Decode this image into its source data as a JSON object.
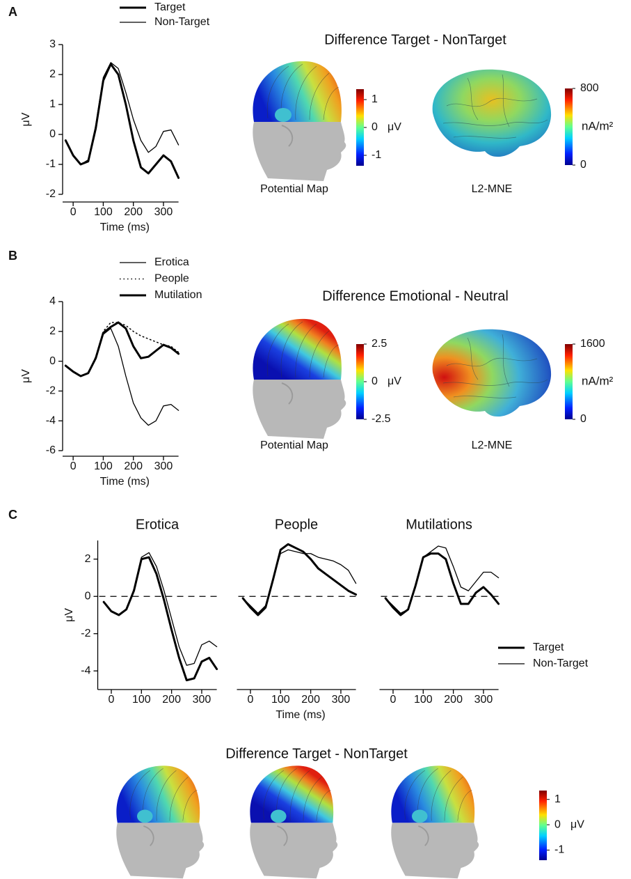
{
  "panel_labels": [
    "A",
    "B",
    "C"
  ],
  "chart_data": [
    {
      "type": "line",
      "ylabel": "μV",
      "xlabel": "Time (ms)",
      "x": [
        -25,
        0,
        25,
        50,
        75,
        100,
        125,
        150,
        175,
        200,
        225,
        250,
        275,
        300,
        325,
        350
      ],
      "xlim": [
        -35,
        350
      ],
      "xticks": [
        0,
        100,
        200,
        300
      ],
      "ylim": [
        -2,
        3
      ],
      "yticks": [
        -2,
        -1,
        0,
        1,
        2,
        3
      ],
      "legend": true,
      "series": [
        {
          "name": "Target",
          "color": "#000000",
          "line_width": 3,
          "values": [
            -0.2,
            -0.7,
            -1.0,
            -0.9,
            0.2,
            1.8,
            2.35,
            2.0,
            1.0,
            -0.2,
            -1.1,
            -1.3,
            -1.0,
            -0.7,
            -0.9,
            -1.45
          ]
        },
        {
          "name": "Non-Target",
          "color": "#000000",
          "line_width": 1.3,
          "values": [
            -0.2,
            -0.7,
            -1.0,
            -0.85,
            0.3,
            1.9,
            2.4,
            2.2,
            1.4,
            0.5,
            -0.2,
            -0.6,
            -0.4,
            0.1,
            0.15,
            -0.35
          ]
        }
      ]
    },
    {
      "type": "line",
      "ylabel": "μV",
      "xlabel": "Time (ms)",
      "x": [
        -25,
        0,
        25,
        50,
        75,
        100,
        125,
        150,
        175,
        200,
        225,
        250,
        275,
        300,
        325,
        350
      ],
      "xlim": [
        -35,
        350
      ],
      "xticks": [
        0,
        100,
        200,
        300
      ],
      "ylim": [
        -6,
        4
      ],
      "yticks": [
        -6,
        -4,
        -2,
        0,
        2,
        4
      ],
      "legend": true,
      "series": [
        {
          "name": "Erotica",
          "color": "#000000",
          "line_width": 1.3,
          "values": [
            -0.3,
            -0.7,
            -1.0,
            -0.8,
            0.2,
            1.8,
            2.2,
            1.0,
            -1.0,
            -2.8,
            -3.8,
            -4.3,
            -4.0,
            -3.0,
            -2.9,
            -3.3
          ]
        },
        {
          "name": "People",
          "color": "#000000",
          "line_width": 1.5,
          "dash": "dotted",
          "values": [
            -0.3,
            -0.7,
            -1.0,
            -0.8,
            0.3,
            2.0,
            2.6,
            2.6,
            2.4,
            2.0,
            1.7,
            1.5,
            1.3,
            1.1,
            1.0,
            0.6
          ]
        },
        {
          "name": "Mutilation",
          "color": "#000000",
          "line_width": 3,
          "values": [
            -0.3,
            -0.7,
            -1.0,
            -0.8,
            0.2,
            1.9,
            2.3,
            2.6,
            2.2,
            1.0,
            0.2,
            0.3,
            0.7,
            1.1,
            0.9,
            0.5
          ]
        }
      ]
    },
    {
      "type": "line",
      "title": "Erotica",
      "ylabel": "μV",
      "zero_line": true,
      "x": [
        -25,
        0,
        25,
        50,
        75,
        100,
        125,
        150,
        175,
        200,
        225,
        250,
        275,
        300,
        325,
        350
      ],
      "xlim": [
        -45,
        350
      ],
      "xticks": [
        0,
        100,
        200,
        300
      ],
      "ylim": [
        -5,
        3
      ],
      "yticks": [
        -4,
        -2,
        0,
        2
      ],
      "series": [
        {
          "color": "#000000",
          "line_width": 3,
          "values": [
            -0.3,
            -0.8,
            -1.0,
            -0.7,
            0.3,
            2.0,
            2.1,
            1.2,
            -0.2,
            -1.8,
            -3.3,
            -4.5,
            -4.4,
            -3.5,
            -3.3,
            -3.9
          ]
        },
        {
          "color": "#000000",
          "line_width": 1.3,
          "values": [
            -0.3,
            -0.8,
            -1.0,
            -0.7,
            0.4,
            2.1,
            2.35,
            1.6,
            0.3,
            -1.2,
            -2.7,
            -3.7,
            -3.6,
            -2.6,
            -2.4,
            -2.7
          ]
        }
      ]
    },
    {
      "type": "line",
      "title": "People",
      "xlabel": "Time (ms)",
      "zero_line": true,
      "x": [
        -25,
        0,
        25,
        50,
        75,
        100,
        125,
        150,
        175,
        200,
        225,
        250,
        275,
        300,
        325,
        350
      ],
      "xlim": [
        -45,
        350
      ],
      "xticks": [
        0,
        100,
        200,
        300
      ],
      "ylim": [
        -5,
        3
      ],
      "series": [
        {
          "color": "#000000",
          "line_width": 3,
          "values": [
            -0.1,
            -0.6,
            -1.0,
            -0.6,
            0.9,
            2.5,
            2.8,
            2.6,
            2.4,
            2.0,
            1.5,
            1.2,
            0.9,
            0.6,
            0.3,
            0.1
          ]
        },
        {
          "color": "#000000",
          "line_width": 1.3,
          "values": [
            -0.1,
            -0.5,
            -0.9,
            -0.5,
            1.0,
            2.3,
            2.5,
            2.4,
            2.3,
            2.3,
            2.1,
            2.0,
            1.9,
            1.7,
            1.4,
            0.7
          ]
        }
      ]
    },
    {
      "type": "line",
      "title": "Mutilations",
      "zero_line": true,
      "legend": true,
      "x": [
        -25,
        0,
        25,
        50,
        75,
        100,
        125,
        150,
        175,
        200,
        225,
        250,
        275,
        300,
        325,
        350
      ],
      "xlim": [
        -45,
        350
      ],
      "xticks": [
        0,
        100,
        200,
        300
      ],
      "ylim": [
        -5,
        3
      ],
      "series": [
        {
          "name": "Target",
          "color": "#000000",
          "line_width": 3,
          "values": [
            -0.1,
            -0.6,
            -1.0,
            -0.7,
            0.6,
            2.1,
            2.3,
            2.3,
            2.0,
            0.7,
            -0.4,
            -0.4,
            0.2,
            0.5,
            0.1,
            -0.4
          ]
        },
        {
          "name": "Non-Target",
          "color": "#000000",
          "line_width": 1.3,
          "values": [
            -0.1,
            -0.5,
            -0.9,
            -0.7,
            0.5,
            2.1,
            2.4,
            2.7,
            2.6,
            1.6,
            0.5,
            0.3,
            0.8,
            1.3,
            1.3,
            1.0
          ]
        }
      ]
    }
  ],
  "maps": [
    {
      "title": "Difference Target - NonTarget",
      "captions": [
        "Potential Map",
        "L2-MNE"
      ],
      "colorbars": [
        {
          "lim": [
            -1.375,
            1.375
          ],
          "ticks": [
            1,
            0,
            -1
          ],
          "unit": "μV"
        },
        {
          "lim": [
            0,
            800
          ],
          "ticks": [
            800,
            0
          ],
          "unit": "nA/m²"
        }
      ]
    },
    {
      "title": "Difference Emotional - Neutral",
      "captions": [
        "Potential Map",
        "L2-MNE"
      ],
      "colorbars": [
        {
          "lim": [
            -2.5,
            2.5
          ],
          "ticks": [
            2.5,
            0,
            -2.5
          ],
          "unit": "μV"
        },
        {
          "lim": [
            0,
            1600
          ],
          "ticks": [
            1600,
            0
          ],
          "unit": "nA/m²"
        }
      ]
    },
    {
      "title": "Difference Target - NonTarget",
      "colorbars": [
        {
          "lim": [
            -1.4,
            1.35
          ],
          "ticks": [
            1,
            0,
            -1
          ],
          "unit": "μV"
        }
      ]
    }
  ]
}
